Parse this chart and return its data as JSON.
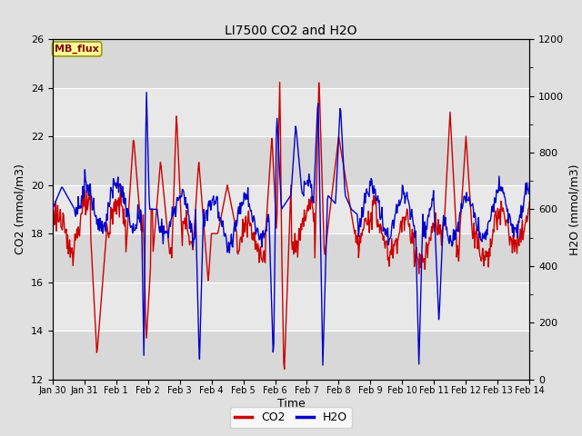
{
  "title": "LI7500 CO2 and H2O",
  "ylabel_left": "CO2 (mmol/m3)",
  "ylabel_right": "H2O (mmol/m3)",
  "xlabel": "Time",
  "ylim_left": [
    12,
    26
  ],
  "ylim_right": [
    0,
    1200
  ],
  "yticks_left": [
    12,
    14,
    16,
    18,
    20,
    22,
    24,
    26
  ],
  "yticks_right": [
    0,
    200,
    400,
    600,
    800,
    1000,
    1200
  ],
  "xtick_labels": [
    "Jan 30",
    "Jan 31",
    "Feb 1",
    "Feb 2",
    "Feb 3",
    "Feb 4",
    "Feb 5",
    "Feb 6",
    "Feb 7",
    "Feb 8",
    "Feb 9",
    "Feb 10",
    "Feb 11",
    "Feb 12",
    "Feb 13",
    "Feb 14"
  ],
  "co2_color": "#cc0000",
  "h2o_color": "#0000cc",
  "bg_color": "#e0e0e0",
  "plot_bg_light": "#e8e8e8",
  "plot_bg_dark": "#d0d0d0",
  "mb_flux_bg": "#ffff99",
  "mb_flux_text": "#880000",
  "mb_flux_border": "#999900",
  "line_width": 1.0,
  "title_fontsize": 10,
  "axis_fontsize": 9,
  "tick_fontsize": 8,
  "band_colors": [
    "#d8d8d8",
    "#e8e8e8",
    "#d8d8d8",
    "#e8e8e8",
    "#d8d8d8",
    "#e8e8e8",
    "#d8d8d8"
  ],
  "band_yvals": [
    12,
    14,
    16,
    18,
    20,
    22,
    24,
    26
  ]
}
